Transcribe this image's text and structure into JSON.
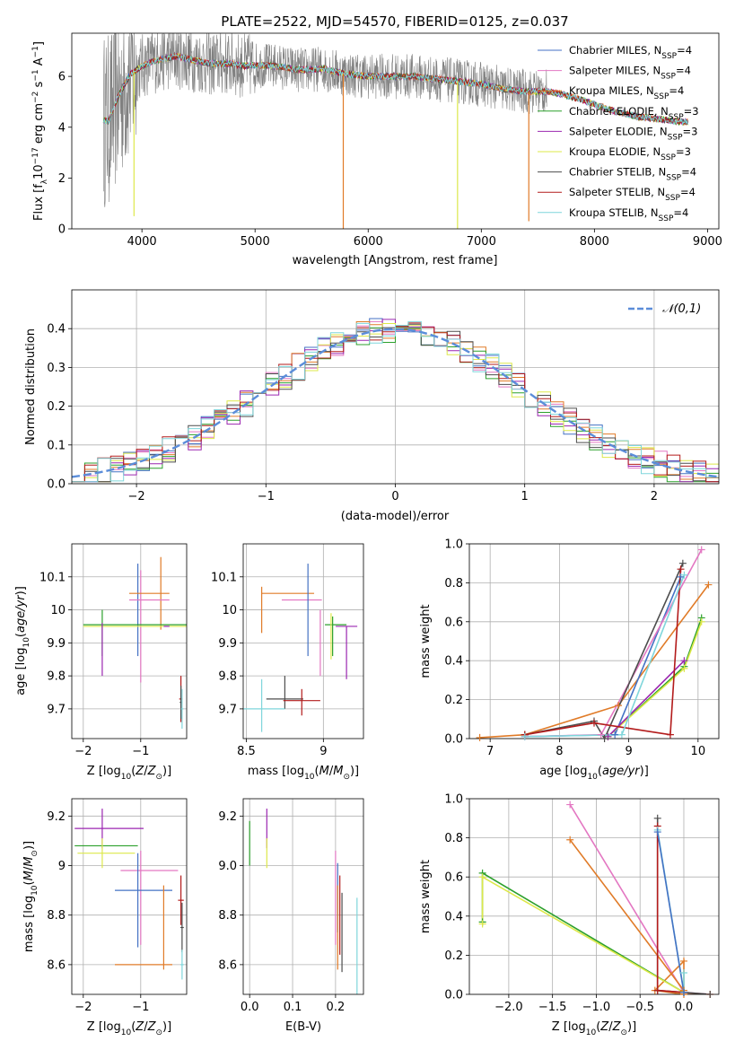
{
  "title": "PLATE=2522, MJD=54570, FIBERID=0125, z=0.037",
  "colors": {
    "Chabrier MILES": "#4472c4",
    "Salpeter MILES": "#e377c2",
    "Kroupa MILES": "#e07b28",
    "Chabrier ELODIE": "#2ca02c",
    "Salpeter ELODIE": "#9b27b0",
    "Kroupa ELODIE": "#dde84a",
    "Chabrier STELIB": "#4d4d4d",
    "Salpeter STELIB": "#b31b1b",
    "Kroupa STELIB": "#7fd6db",
    "data": "#808080",
    "gaussian": "#5b8dd9"
  },
  "legend_top": [
    {
      "name": "Chabrier MILES",
      "label": "Chabrier MILES, N",
      "sub": "SSP",
      "tail": "=4"
    },
    {
      "name": "Salpeter MILES",
      "label": "Salpeter MILES, N",
      "sub": "SSP",
      "tail": "=4"
    },
    {
      "name": "Kroupa MILES",
      "label": "Kroupa MILES, N",
      "sub": "SSP",
      "tail": "=4"
    },
    {
      "name": "Chabrier ELODIE",
      "label": "Chabrier ELODIE, N",
      "sub": "SSP",
      "tail": "=3"
    },
    {
      "name": "Salpeter ELODIE",
      "label": "Salpeter ELODIE, N",
      "sub": "SSP",
      "tail": "=3"
    },
    {
      "name": "Kroupa ELODIE",
      "label": "Kroupa ELODIE, N",
      "sub": "SSP",
      "tail": "=3"
    },
    {
      "name": "Chabrier STELIB",
      "label": "Chabrier STELIB, N",
      "sub": "SSP",
      "tail": "=4"
    },
    {
      "name": "Salpeter STELIB",
      "label": "Salpeter STELIB, N",
      "sub": "SSP",
      "tail": "=4"
    },
    {
      "name": "Kroupa STELIB",
      "label": "Kroupa STELIB, N",
      "sub": "SSP",
      "tail": "=4"
    }
  ],
  "chart_data": [
    {
      "id": "spectrum",
      "type": "line",
      "xlabel": "wavelength [Angstrom, rest frame]",
      "ylabel": "Flux [f_λ 10^-17 erg cm^-2 s^-1 A^-1]",
      "xlim": [
        3380,
        9100
      ],
      "ylim": [
        0,
        7.7
      ],
      "xticks": [
        4000,
        5000,
        6000,
        7000,
        8000,
        9000
      ],
      "yticks": [
        0,
        2,
        4,
        6
      ],
      "grid": false,
      "legend": "upper right",
      "continuum": {
        "x": [
          3660,
          3700,
          3800,
          3900,
          4000,
          4100,
          4200,
          4300,
          4400,
          4500,
          4600,
          4700,
          4800,
          4900,
          5000,
          5200,
          5400,
          5600,
          5800,
          6000,
          6200,
          6400,
          6600,
          6800,
          7000,
          7200,
          7400,
          7600,
          7800,
          8000,
          8200,
          8400,
          8600,
          8800
        ],
        "y": [
          4.3,
          4.2,
          5.3,
          6.1,
          6.4,
          6.6,
          6.7,
          6.8,
          6.7,
          6.6,
          6.5,
          6.5,
          6.5,
          6.4,
          6.45,
          6.4,
          6.25,
          6.3,
          6.1,
          6.0,
          6.0,
          6.0,
          5.9,
          5.8,
          5.7,
          5.5,
          5.4,
          5.4,
          5.2,
          4.9,
          4.6,
          4.4,
          4.3,
          4.2
        ]
      },
      "model_end": 8830,
      "data_end": 7580,
      "dips": [
        {
          "series": "Kroupa ELODIE",
          "x": 3930,
          "y": 0.5
        },
        {
          "series": "Kroupa MILES",
          "x": 5780,
          "y": 0.0
        },
        {
          "series": "Kroupa ELODIE",
          "x": 6790,
          "y": 0.0
        },
        {
          "series": "Kroupa MILES",
          "x": 7420,
          "y": 0.3
        }
      ]
    },
    {
      "id": "residual_histogram",
      "type": "line",
      "xlabel": "(data-model)/error",
      "ylabel": "Normed distribution",
      "xlim": [
        -2.5,
        2.5
      ],
      "ylim": [
        0,
        0.5
      ],
      "xticks": [
        -2,
        -1,
        0,
        1,
        2
      ],
      "yticks": [
        0.0,
        0.1,
        0.2,
        0.3,
        0.4
      ],
      "grid": true,
      "legend": "upper right",
      "gaussian_label": "N(0,1)",
      "bins": {
        "start": -2.5,
        "width": 0.1,
        "count": 50
      }
    },
    {
      "id": "age_vs_Z",
      "type": "scatter",
      "xlabel": "Z [log10(Z/Z_sun)]",
      "ylabel": "age [log10(age/yr)]",
      "xlim": [
        -2.2,
        -0.2
      ],
      "ylim": [
        9.61,
        10.2
      ],
      "xticks": [
        -2,
        -1
      ],
      "yticks": [
        9.7,
        9.8,
        9.9,
        10.0,
        10.1
      ],
      "grid": true,
      "points": [
        {
          "series": "Chabrier MILES",
          "x": -1.05,
          "y": 10.0,
          "xerr": 0.0,
          "yerr": 0.14
        },
        {
          "series": "Salpeter MILES",
          "x": -1.0,
          "y": 9.95,
          "xerr": 0.0,
          "yerr": 0.17
        },
        {
          "series": "Kroupa MILES",
          "x": -0.85,
          "y": 10.05,
          "xerr": 0.35,
          "yerr": 0.0
        },
        {
          "series": "Kroupa MILES",
          "x": -0.65,
          "y": 10.05,
          "xerr": 0.0,
          "yerr": 0.11
        },
        {
          "series": "Salpeter MILES",
          "x": -0.85,
          "y": 10.03,
          "xerr": 0.35,
          "yerr": 0.0
        },
        {
          "series": "Chabrier ELODIE",
          "x": -1.0,
          "y": 9.955,
          "xerr": 1.0,
          "yerr": 0.0
        },
        {
          "series": "Kroupa ELODIE",
          "x": -1.0,
          "y": 9.95,
          "xerr": 1.0,
          "yerr": 0.0
        },
        {
          "series": "Chabrier ELODIE",
          "x": -1.67,
          "y": 9.93,
          "xerr": 0.0,
          "yerr": 0.07
        },
        {
          "series": "Salpeter ELODIE",
          "x": -1.67,
          "y": 9.88,
          "xerr": 0.0,
          "yerr": 0.08
        },
        {
          "series": "Salpeter ELODIE",
          "x": -0.55,
          "y": 9.95,
          "xerr": 0.05,
          "yerr": 0.0
        },
        {
          "series": "Salpeter STELIB",
          "x": -0.3,
          "y": 9.73,
          "xerr": 0.03,
          "yerr": 0.07
        },
        {
          "series": "Chabrier STELIB",
          "x": -0.3,
          "y": 9.72,
          "xerr": 0.02,
          "yerr": 0.05
        },
        {
          "series": "Kroupa STELIB",
          "x": -0.28,
          "y": 9.7,
          "xerr": 0.02,
          "yerr": 0.06
        }
      ]
    },
    {
      "id": "age_vs_mass",
      "type": "scatter",
      "xlabel": "mass [log10(M/M_sun)]",
      "ylabel": "",
      "xlim": [
        8.48,
        9.26
      ],
      "ylim": [
        9.61,
        10.2
      ],
      "xticks": [
        8.5,
        9.0
      ],
      "yticks": [
        9.7,
        9.8,
        9.9,
        10.0,
        10.1
      ],
      "grid": true,
      "points": [
        {
          "series": "Kroupa MILES",
          "x": 8.77,
          "y": 10.05,
          "xerr": 0.17,
          "yerr": 0.0
        },
        {
          "series": "Kroupa MILES",
          "x": 8.6,
          "y": 10.0,
          "xerr": 0.0,
          "yerr": 0.07
        },
        {
          "series": "Salpeter MILES",
          "x": 8.86,
          "y": 10.03,
          "xerr": 0.13,
          "yerr": 0.0
        },
        {
          "series": "Salpeter MILES",
          "x": 8.98,
          "y": 9.9,
          "xerr": 0.0,
          "yerr": 0.1
        },
        {
          "series": "Chabrier MILES",
          "x": 8.9,
          "y": 10.0,
          "xerr": 0.0,
          "yerr": 0.14
        },
        {
          "series": "Chabrier ELODIE",
          "x": 9.08,
          "y": 9.955,
          "xerr": 0.07,
          "yerr": 0.0
        },
        {
          "series": "Kroupa ELODIE",
          "x": 9.05,
          "y": 9.92,
          "xerr": 0.0,
          "yerr": 0.07
        },
        {
          "series": "Chabrier ELODIE",
          "x": 9.06,
          "y": 9.92,
          "xerr": 0.0,
          "yerr": 0.06
        },
        {
          "series": "Salpeter ELODIE",
          "x": 9.15,
          "y": 9.95,
          "xerr": 0.07,
          "yerr": 0.0
        },
        {
          "series": "Salpeter ELODIE",
          "x": 9.15,
          "y": 9.87,
          "xerr": 0.0,
          "yerr": 0.08
        },
        {
          "series": "Chabrier STELIB",
          "x": 8.75,
          "y": 9.73,
          "xerr": 0.12,
          "yerr": 0.0
        },
        {
          "series": "Chabrier STELIB",
          "x": 8.75,
          "y": 9.75,
          "xerr": 0.0,
          "yerr": 0.05
        },
        {
          "series": "Salpeter STELIB",
          "x": 8.86,
          "y": 9.725,
          "xerr": 0.12,
          "yerr": 0.0
        },
        {
          "series": "Salpeter STELIB",
          "x": 8.86,
          "y": 9.72,
          "xerr": 0.0,
          "yerr": 0.04
        },
        {
          "series": "Kroupa STELIB",
          "x": 8.6,
          "y": 9.7,
          "xerr": 0.15,
          "yerr": 0.0
        },
        {
          "series": "Kroupa STELIB",
          "x": 8.6,
          "y": 9.71,
          "xerr": 0.0,
          "yerr": 0.08
        }
      ]
    },
    {
      "id": "mass_weight_vs_age",
      "type": "line",
      "xlabel": "age [log10(age/yr)]",
      "ylabel": "mass weight",
      "xlim": [
        6.7,
        10.3
      ],
      "ylim": [
        0,
        1
      ],
      "xticks": [
        7,
        8,
        9,
        10
      ],
      "yticks": [
        0.0,
        0.2,
        0.4,
        0.6,
        0.8,
        1.0
      ],
      "grid": true,
      "series": [
        {
          "name": "Kroupa MILES",
          "x": [
            6.85,
            7.5,
            8.85,
            10.15
          ],
          "y": [
            0.005,
            0.02,
            0.17,
            0.79
          ]
        },
        {
          "name": "Chabrier MILES",
          "x": [
            7.5,
            8.8,
            9.75
          ],
          "y": [
            0.01,
            0.02,
            0.83
          ]
        },
        {
          "name": "Salpeter MILES",
          "x": [
            7.5,
            8.6,
            10.05
          ],
          "y": [
            0.01,
            0.02,
            0.97
          ]
        },
        {
          "name": "Chabrier ELODIE",
          "x": [
            8.7,
            9.8,
            10.05
          ],
          "y": [
            0.01,
            0.37,
            0.62
          ]
        },
        {
          "name": "Kroupa ELODIE",
          "x": [
            8.7,
            9.8,
            10.05
          ],
          "y": [
            0.01,
            0.36,
            0.6
          ]
        },
        {
          "name": "Salpeter ELODIE",
          "x": [
            8.7,
            9.8
          ],
          "y": [
            0.01,
            0.4
          ]
        },
        {
          "name": "Chabrier STELIB",
          "x": [
            7.5,
            8.5,
            8.65,
            9.78
          ],
          "y": [
            0.02,
            0.09,
            0.0,
            0.9
          ]
        },
        {
          "name": "Salpeter STELIB",
          "x": [
            7.5,
            8.5,
            9.6,
            9.75
          ],
          "y": [
            0.02,
            0.08,
            0.02,
            0.87
          ]
        },
        {
          "name": "Kroupa STELIB",
          "x": [
            7.5,
            8.9,
            9.8
          ],
          "y": [
            0.01,
            0.02,
            0.84
          ]
        }
      ]
    },
    {
      "id": "mass_vs_Z",
      "type": "scatter",
      "xlabel": "Z [log10(Z/Z_sun)]",
      "ylabel": "mass [log10(M/M_sun)]",
      "xlim": [
        -2.2,
        -0.2
      ],
      "ylim": [
        8.48,
        9.27
      ],
      "xticks": [
        -2,
        -1
      ],
      "yticks": [
        8.6,
        8.8,
        9.0,
        9.2
      ],
      "grid": true,
      "points": [
        {
          "series": "Salpeter ELODIE",
          "x": -1.55,
          "y": 9.15,
          "xerr": 0.6,
          "yerr": 0.0
        },
        {
          "series": "Salpeter ELODIE",
          "x": -1.67,
          "y": 9.15,
          "xerr": 0.0,
          "yerr": 0.08
        },
        {
          "series": "Chabrier ELODIE",
          "x": -1.6,
          "y": 9.08,
          "xerr": 0.55,
          "yerr": 0.0
        },
        {
          "series": "Kroupa ELODIE",
          "x": -1.6,
          "y": 9.05,
          "xerr": 0.5,
          "yerr": 0.0
        },
        {
          "series": "Kroupa ELODIE",
          "x": -1.67,
          "y": 9.05,
          "xerr": 0.0,
          "yerr": 0.06
        },
        {
          "series": "Salpeter MILES",
          "x": -0.85,
          "y": 8.98,
          "xerr": 0.5,
          "yerr": 0.0
        },
        {
          "series": "Salpeter MILES",
          "x": -1.0,
          "y": 8.87,
          "xerr": 0.0,
          "yerr": 0.19
        },
        {
          "series": "Chabrier MILES",
          "x": -0.95,
          "y": 8.9,
          "xerr": 0.5,
          "yerr": 0.0
        },
        {
          "series": "Chabrier MILES",
          "x": -1.05,
          "y": 8.86,
          "xerr": 0.0,
          "yerr": 0.19
        },
        {
          "series": "Kroupa MILES",
          "x": -0.95,
          "y": 8.6,
          "xerr": 0.5,
          "yerr": 0.0
        },
        {
          "series": "Kroupa MILES",
          "x": -0.6,
          "y": 8.75,
          "xerr": 0.0,
          "yerr": 0.17
        },
        {
          "series": "Salpeter STELIB",
          "x": -0.3,
          "y": 8.86,
          "xerr": 0.05,
          "yerr": 0.1
        },
        {
          "series": "Chabrier STELIB",
          "x": -0.28,
          "y": 8.75,
          "xerr": 0.03,
          "yerr": 0.1
        },
        {
          "series": "Kroupa STELIB",
          "x": -0.28,
          "y": 8.6,
          "xerr": 0.03,
          "yerr": 0.06
        }
      ]
    },
    {
      "id": "mass_vs_ebv",
      "type": "scatter",
      "xlabel": "E(B-V)",
      "ylabel": "",
      "xlim": [
        -0.015,
        0.265
      ],
      "ylim": [
        8.48,
        9.27
      ],
      "xticks": [
        0.0,
        0.1,
        0.2
      ],
      "yticks": [
        8.6,
        8.8,
        9.0,
        9.2
      ],
      "grid": true,
      "points": [
        {
          "series": "Chabrier ELODIE",
          "x": 0.0,
          "y": 9.09,
          "xerr": 0.0,
          "yerr": 0.09
        },
        {
          "series": "Salpeter ELODIE",
          "x": 0.04,
          "y": 9.15,
          "xerr": 0.0,
          "yerr": 0.08
        },
        {
          "series": "Kroupa ELODIE",
          "x": 0.04,
          "y": 9.05,
          "xerr": 0.0,
          "yerr": 0.06
        },
        {
          "series": "Salpeter MILES",
          "x": 0.2,
          "y": 8.87,
          "xerr": 0.0,
          "yerr": 0.19
        },
        {
          "series": "Chabrier MILES",
          "x": 0.205,
          "y": 8.87,
          "xerr": 0.0,
          "yerr": 0.14
        },
        {
          "series": "Kroupa MILES",
          "x": 0.205,
          "y": 8.75,
          "xerr": 0.0,
          "yerr": 0.17
        },
        {
          "series": "Salpeter STELIB",
          "x": 0.21,
          "y": 8.8,
          "xerr": 0.0,
          "yerr": 0.16
        },
        {
          "series": "Chabrier STELIB",
          "x": 0.215,
          "y": 8.73,
          "xerr": 0.0,
          "yerr": 0.16
        },
        {
          "series": "Kroupa STELIB",
          "x": 0.25,
          "y": 8.64,
          "xerr": 0.0,
          "yerr": 0.23
        }
      ]
    },
    {
      "id": "mass_weight_vs_Z",
      "type": "line",
      "xlabel": "Z [log10(Z/Z_sun)]",
      "ylabel": "mass weight",
      "xlim": [
        -2.45,
        0.4
      ],
      "ylim": [
        0,
        1
      ],
      "xticks": [
        -2.0,
        -1.5,
        -1.0,
        -0.5,
        0.0
      ],
      "yticks": [
        0.0,
        0.2,
        0.4,
        0.6,
        0.8,
        1.0
      ],
      "grid": true,
      "series": [
        {
          "name": "Salpeter MILES",
          "x": [
            -1.3,
            0.0,
            0.3
          ],
          "y": [
            0.97,
            0.01,
            0.0
          ]
        },
        {
          "name": "Kroupa MILES",
          "x": [
            -1.3,
            0.0,
            0.0,
            -0.33,
            0.0,
            0.3
          ],
          "y": [
            0.79,
            0.02,
            0.17,
            0.02,
            0.0,
            0.0
          ]
        },
        {
          "name": "Chabrier ELODIE",
          "x": [
            -2.3,
            -2.3,
            0.0
          ],
          "y": [
            0.37,
            0.62,
            0.01
          ]
        },
        {
          "name": "Kroupa ELODIE",
          "x": [
            -2.3,
            -2.3,
            0.0
          ],
          "y": [
            0.36,
            0.6,
            0.01
          ]
        },
        {
          "name": "Chabrier STELIB",
          "x": [
            -0.3,
            -0.3,
            0.3
          ],
          "y": [
            0.9,
            0.02,
            0.0
          ]
        },
        {
          "name": "Salpeter STELIB",
          "x": [
            -0.3,
            -0.3,
            0.0
          ],
          "y": [
            0.86,
            0.02,
            0.01
          ]
        },
        {
          "name": "Kroupa STELIB",
          "x": [
            -0.3,
            0.0,
            0.0
          ],
          "y": [
            0.84,
            0.01,
            0.11
          ]
        },
        {
          "name": "Chabrier MILES",
          "x": [
            -0.3,
            0.0
          ],
          "y": [
            0.83,
            0.01
          ]
        }
      ]
    }
  ]
}
